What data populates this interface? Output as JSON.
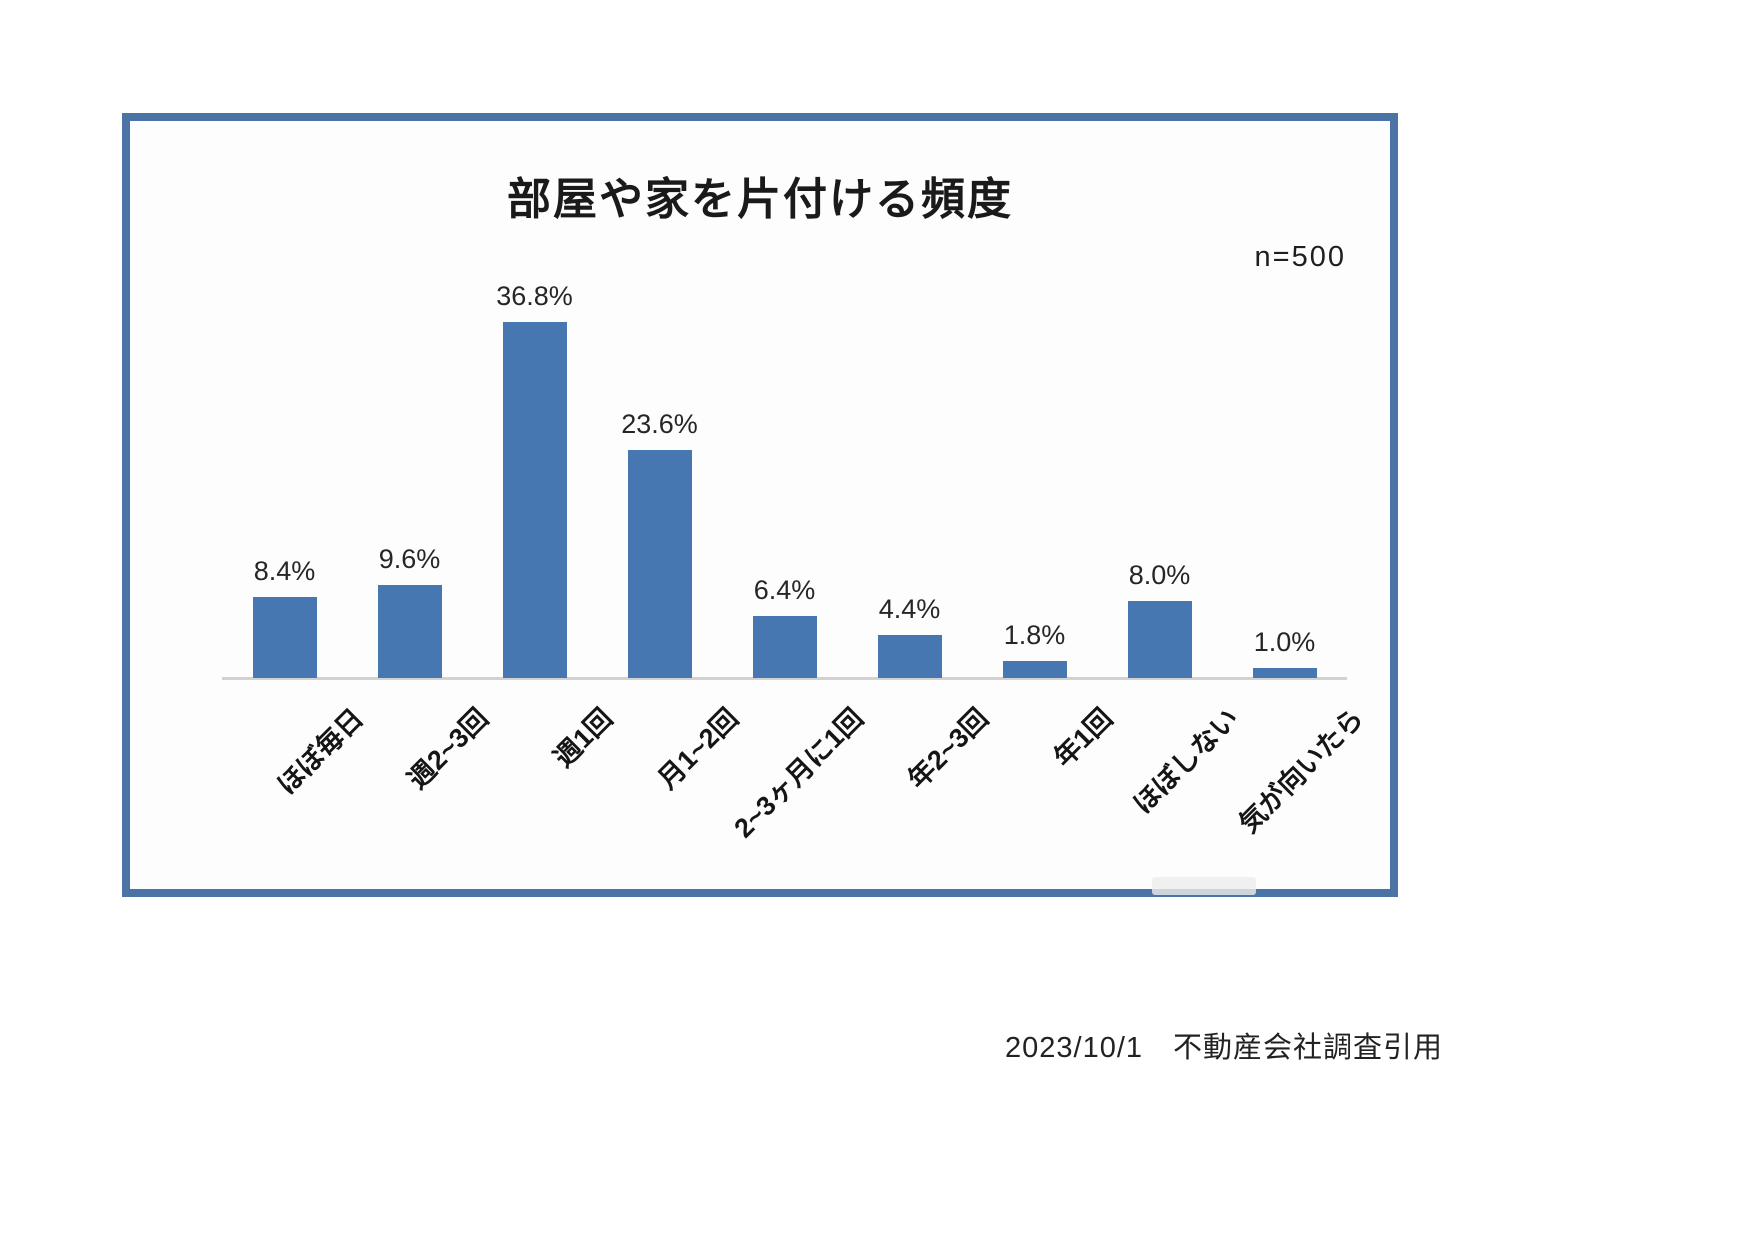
{
  "chart_frame": {
    "border_color": "#4b74a6",
    "background": "#fdfdfd"
  },
  "chart_data": {
    "type": "bar",
    "title": "部屋や家を片付ける頻度",
    "annotation": "n=500",
    "categories": [
      "ほぼ毎日",
      "週2~3回",
      "週1回",
      "月1~2回",
      "2~3ヶ月に1回",
      "年2~3回",
      "年1回",
      "ほぼしない",
      "気が向いたら"
    ],
    "values": [
      8.4,
      9.6,
      36.8,
      23.6,
      6.4,
      4.4,
      1.8,
      8.0,
      1.0
    ],
    "value_labels": [
      "8.4%",
      "9.6%",
      "36.8%",
      "23.6%",
      "6.4%",
      "4.4%",
      "1.8%",
      "8.0%",
      "1.0%"
    ],
    "bar_color": "#4777b0",
    "axis_line_color": "#d2d2d2",
    "ylim": [
      0,
      40
    ],
    "grid": false,
    "legend": "none",
    "xlabel": "",
    "ylabel": "",
    "x_label_rotation_deg": -45
  },
  "footer": {
    "source_note": "2023/10/1　不動産会社調査引用"
  }
}
